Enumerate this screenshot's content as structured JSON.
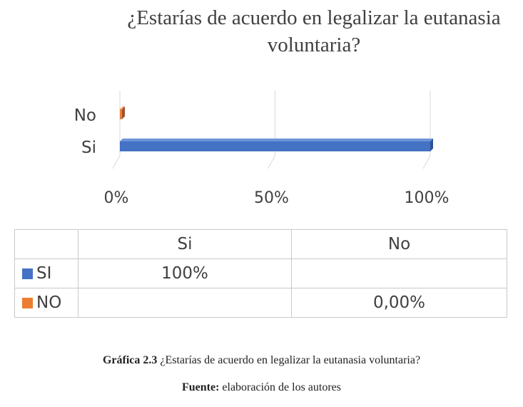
{
  "chart_data": {
    "type": "bar",
    "orientation": "horizontal",
    "style": "3d",
    "title": "¿Estarías de acuerdo en legalizar la eutanasia voluntaria?",
    "categories": [
      "No",
      "Si"
    ],
    "series": [
      {
        "name": "SI",
        "color": "#4472c4",
        "values": [
          null,
          100
        ]
      },
      {
        "name": "NO",
        "color": "#ed7d31",
        "values": [
          0,
          null
        ]
      }
    ],
    "xlim": [
      0,
      100
    ],
    "x_ticks": [
      "0%",
      "50%",
      "100%"
    ],
    "grid": true,
    "data_table": {
      "columns": [
        "Si",
        "No"
      ],
      "rows": [
        {
          "label": "SI",
          "color": "#4472c4",
          "cells": [
            "100%",
            ""
          ]
        },
        {
          "label": "NO",
          "color": "#ed7d31",
          "cells": [
            "",
            "0,00%"
          ]
        }
      ]
    }
  },
  "caption": {
    "figure_label": "Gráfica 2.3",
    "figure_text": " ¿Estarías de acuerdo en legalizar la eutanasia voluntaria?",
    "source_label": "Fuente:",
    "source_text": " elaboración de los autores"
  }
}
